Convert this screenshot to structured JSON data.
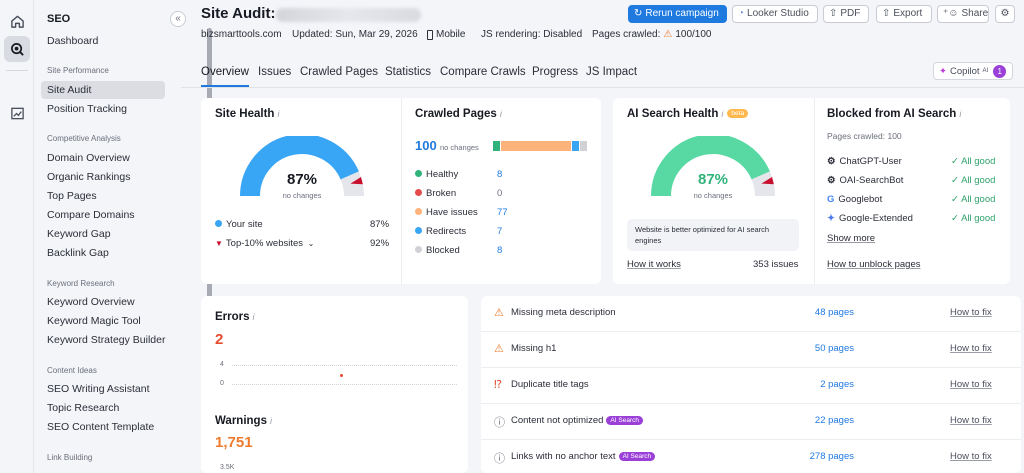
{
  "sidebar": {
    "title": "SEO",
    "collapse_icon": "«",
    "items_top": [
      {
        "label": "Dashboard"
      }
    ],
    "sections": [
      {
        "heading": "Site Performance",
        "items": [
          "Site Audit",
          "Position Tracking"
        ]
      },
      {
        "heading": "Competitive Analysis",
        "items": [
          "Domain Overview",
          "Organic Rankings",
          "Top Pages",
          "Compare Domains",
          "Keyword Gap",
          "Backlink Gap"
        ]
      },
      {
        "heading": "Keyword Research",
        "items": [
          "Keyword Overview",
          "Keyword Magic Tool",
          "Keyword Strategy Builder"
        ]
      },
      {
        "heading": "Content Ideas",
        "items": [
          "SEO Writing Assistant",
          "Topic Research",
          "SEO Content Template"
        ]
      },
      {
        "heading": "Link Building",
        "items": []
      }
    ],
    "active_item": "Site Audit"
  },
  "header": {
    "title": "Site Audit:",
    "buttons": {
      "rerun": "Rerun campaign",
      "looker": "Looker Studio",
      "pdf": "PDF",
      "export": "Export",
      "share": "Share"
    },
    "meta": {
      "domain": "bizsmarttools.com",
      "updated": "Updated: Sun, Mar 29, 2026",
      "device": "Mobile",
      "js_rendering": "JS rendering: Disabled",
      "pages_crawled_label": "Pages crawled:",
      "pages_crawled_value": "100/100"
    }
  },
  "tabs": [
    "Overview",
    "Issues",
    "Crawled Pages",
    "Statistics",
    "Compare Crawls",
    "Progress",
    "JS Impact"
  ],
  "copilot": {
    "label": "Copilot",
    "sup": "AI",
    "count": "1"
  },
  "site_health": {
    "title": "Site Health",
    "value": "87%",
    "note": "no changes",
    "legend": [
      {
        "label": "Your site",
        "value": "87%"
      },
      {
        "label": "Top-10% websites",
        "value": "92%"
      }
    ],
    "colors": {
      "main": "#38a5f5",
      "rest": "#e4e6eb",
      "marker": "#c8102e"
    }
  },
  "crawled_pages": {
    "title": "Crawled Pages",
    "total": "100",
    "note": "no changes",
    "rows": [
      {
        "label": "Healthy",
        "value": "8",
        "color": "#2fb37a"
      },
      {
        "label": "Broken",
        "value": "0",
        "color": "#e54b4b"
      },
      {
        "label": "Have issues",
        "value": "77",
        "color": "#ffb27a"
      },
      {
        "label": "Redirects",
        "value": "7",
        "color": "#38a5f5"
      },
      {
        "label": "Blocked",
        "value": "8",
        "color": "#cfd1d6"
      }
    ]
  },
  "ai_search_health": {
    "title": "AI Search Health",
    "badge": "beta",
    "value": "87%",
    "note": "no changes",
    "message": "Website is better optimized for AI search engines",
    "link": "How it works",
    "issues": "353 issues",
    "colors": {
      "main": "#58d9a3",
      "rest": "#e4e6eb",
      "marker": "#c8102e"
    }
  },
  "blocked_ai": {
    "title": "Blocked from AI Search",
    "subtitle": "Pages crawled: 100",
    "bots": [
      {
        "name": "ChatGPT-User",
        "status": "All good",
        "icon": "openai-icon"
      },
      {
        "name": "OAI-SearchBot",
        "status": "All good",
        "icon": "openai-icon"
      },
      {
        "name": "Googlebot",
        "status": "All good",
        "icon": "google-icon"
      },
      {
        "name": "Google-Extended",
        "status": "All good",
        "icon": "gemini-icon"
      }
    ],
    "show_more": "Show more",
    "unblock_link": "How to unblock pages"
  },
  "errors": {
    "title": "Errors",
    "value": "2",
    "ticks": [
      "4",
      "0"
    ],
    "color": "#e54b2c"
  },
  "warnings": {
    "title": "Warnings",
    "value": "1,751",
    "tick": "3.5K",
    "color": "#f07a2c"
  },
  "issues": [
    {
      "label": "Missing meta description",
      "icon": "warning",
      "pages": "48 pages",
      "fix": "How to fix",
      "ai": false
    },
    {
      "label": "Missing h1",
      "icon": "warning",
      "pages": "50 pages",
      "fix": "How to fix",
      "ai": false
    },
    {
      "label": "Duplicate title tags",
      "icon": "error",
      "pages": "2 pages",
      "fix": "How to fix",
      "ai": false
    },
    {
      "label": "Content not optimized",
      "icon": "info",
      "pages": "22 pages",
      "fix": "How to fix",
      "ai": true,
      "ai_label": "AI Search"
    },
    {
      "label": "Links with no anchor text",
      "icon": "info",
      "pages": "278 pages",
      "fix": "How to fix",
      "ai": true,
      "ai_label": "AI Search"
    }
  ]
}
